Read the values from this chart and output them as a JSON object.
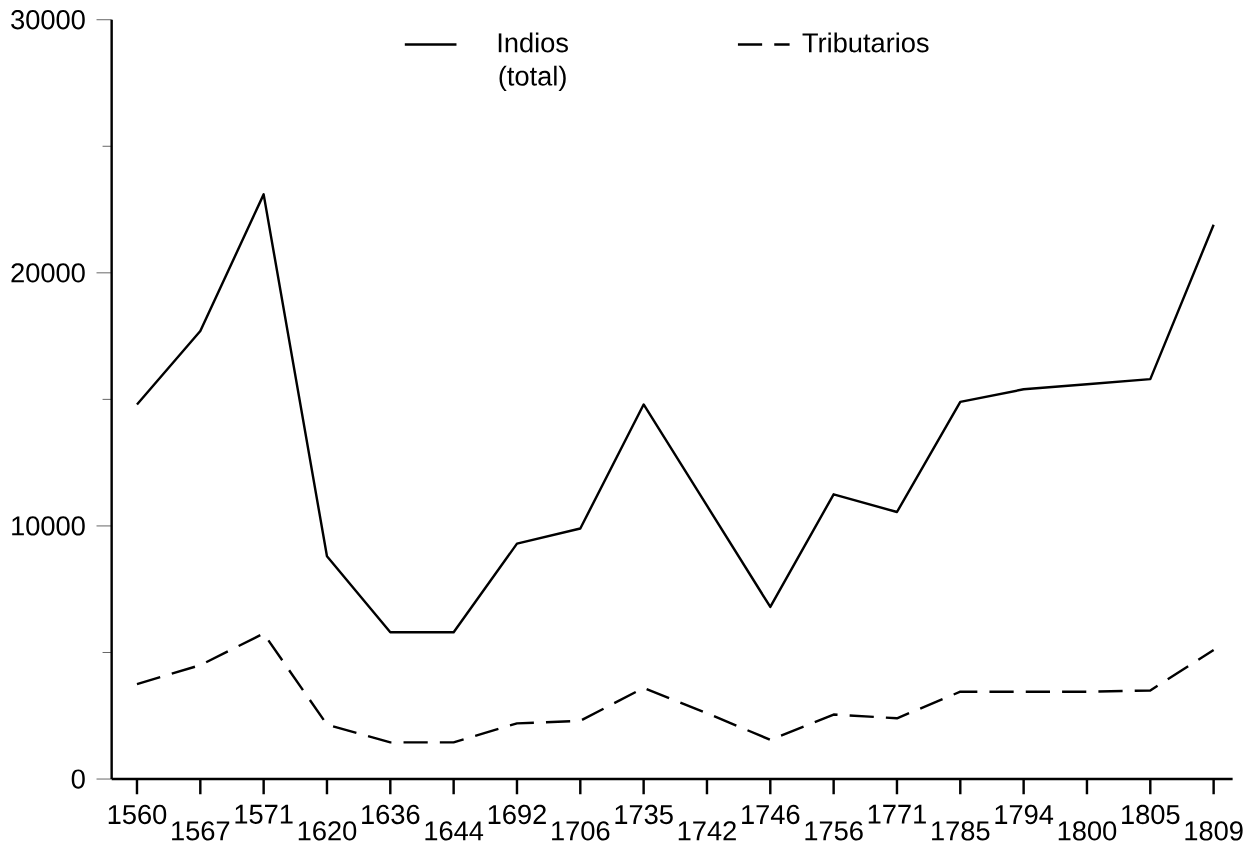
{
  "chart_data": {
    "type": "line",
    "categories": [
      "1560",
      "1567",
      "1571",
      "1620",
      "1636",
      "1644",
      "1692",
      "1706",
      "1735",
      "1742",
      "1746",
      "1756",
      "1771",
      "1785",
      "1794",
      "1800",
      "1805",
      "1809"
    ],
    "series": [
      {
        "name": "Indios (total)",
        "color": "#000000",
        "line_style": "solid",
        "values": [
          14800,
          17700,
          23100,
          8800,
          5800,
          5800,
          9300,
          9900,
          14800,
          10800,
          6800,
          11250,
          10550,
          14900,
          15400,
          15600,
          15800,
          21900
        ]
      },
      {
        "name": "Tributarios",
        "color": "#000000",
        "line_style": "dashed",
        "values": [
          3750,
          4500,
          5750,
          2150,
          1450,
          1450,
          2200,
          2300,
          3600,
          2600,
          1550,
          2550,
          2400,
          3450,
          3450,
          3450,
          3500,
          5100
        ]
      }
    ],
    "ylim": [
      0,
      30000
    ],
    "yticks": [
      0,
      10000,
      20000,
      30000
    ],
    "grid": false,
    "legend": "top",
    "marker": "none"
  }
}
